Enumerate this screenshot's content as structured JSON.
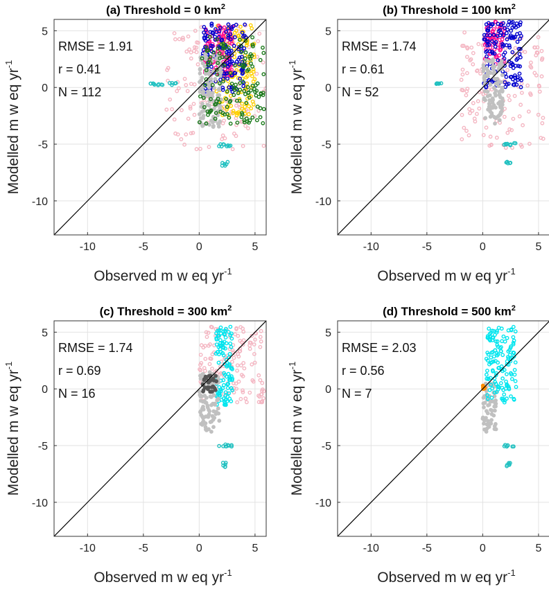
{
  "figure": {
    "common": {
      "x_label": "Observed  m w eq yr",
      "y_label": "Modelled m w eq yr",
      "unit_superscript": "-1",
      "km_superscript": "2"
    }
  },
  "chart_data": [
    {
      "type": "scatter",
      "panel": "(a)",
      "title": "Threshold = 0 km",
      "stats": {
        "rmse": "RMSE = 1.91",
        "r": "r = 0.41",
        "n": "N = 112"
      },
      "xlim": [
        -13,
        6
      ],
      "ylim": [
        -13,
        6
      ],
      "x_ticks": [
        -10,
        -5,
        0,
        5
      ],
      "y_ticks": [
        -10,
        -5,
        0,
        5
      ],
      "grid": true,
      "reference_line": "1:1",
      "clusters": [
        {
          "color": "#f4b6c2",
          "fill": false,
          "x_range": [
            -3,
            6
          ],
          "y_range": [
            -5.5,
            5.5
          ]
        },
        {
          "color": "#ffd000",
          "fill": false,
          "x_range": [
            1.5,
            5
          ],
          "y_range": [
            -2.5,
            5.5
          ]
        },
        {
          "color": "#ff1493",
          "fill": false,
          "x_range": [
            0.5,
            3
          ],
          "y_range": [
            1,
            5.5
          ]
        },
        {
          "color": "#0000cd",
          "fill": false,
          "x_range": [
            0.3,
            4.2
          ],
          "y_range": [
            -0.5,
            5.8
          ]
        },
        {
          "color": "#c0c0c0",
          "fill": true,
          "x_range": [
            0,
            2
          ],
          "y_range": [
            -3.5,
            3
          ]
        },
        {
          "color": "#1a7a1a",
          "fill": false,
          "x_range": [
            0,
            5.8
          ],
          "y_range": [
            -3.2,
            4.5
          ]
        },
        {
          "color": "#20c0c0",
          "fill": false,
          "x_range": [
            -4.5,
            -2
          ],
          "y_range": [
            0.2,
            0.4
          ]
        },
        {
          "color": "#20c0c0",
          "fill": false,
          "x_range": [
            1.5,
            3
          ],
          "y_range": [
            -5.2,
            -5
          ]
        },
        {
          "color": "#20c0c0",
          "fill": false,
          "x_range": [
            2,
            2.6
          ],
          "y_range": [
            -6.9,
            -6.5
          ]
        }
      ]
    },
    {
      "type": "scatter",
      "panel": "(b)",
      "title": "Threshold = 100 km",
      "stats": {
        "rmse": "RMSE = 1.74",
        "r": "r = 0.61",
        "n": "N = 52"
      },
      "xlim": [
        -13,
        6
      ],
      "ylim": [
        -13,
        6
      ],
      "x_ticks": [
        -10,
        -5,
        0,
        5
      ],
      "y_ticks": [
        -10,
        -5,
        0,
        5
      ],
      "grid": true,
      "reference_line": "1:1",
      "clusters": [
        {
          "color": "#f4b6c2",
          "fill": false,
          "x_range": [
            -2,
            5.5
          ],
          "y_range": [
            -5.5,
            5
          ]
        },
        {
          "color": "#ff1493",
          "fill": false,
          "x_range": [
            0.2,
            2
          ],
          "y_range": [
            2,
            5.8
          ]
        },
        {
          "color": "#0000cd",
          "fill": false,
          "x_range": [
            0.1,
            3.5
          ],
          "y_range": [
            0,
            5.8
          ]
        },
        {
          "color": "#c0c0c0",
          "fill": true,
          "x_range": [
            0,
            1.8
          ],
          "y_range": [
            -3.2,
            2.5
          ]
        },
        {
          "color": "#20c0c0",
          "fill": false,
          "x_range": [
            -4.2,
            -3.5
          ],
          "y_range": [
            0.3,
            0.4
          ]
        },
        {
          "color": "#20c0c0",
          "fill": false,
          "x_range": [
            1.5,
            3
          ],
          "y_range": [
            -5.1,
            -4.9
          ]
        },
        {
          "color": "#20c0c0",
          "fill": false,
          "x_range": [
            2.1,
            2.5
          ],
          "y_range": [
            -6.9,
            -6.5
          ]
        }
      ]
    },
    {
      "type": "scatter",
      "panel": "(c)",
      "title": "Threshold = 300 km",
      "stats": {
        "rmse": "RMSE = 1.74",
        "r": "r = 0.69",
        "n": "N = 16"
      },
      "xlim": [
        -13,
        6
      ],
      "ylim": [
        -13,
        6
      ],
      "x_ticks": [
        -10,
        -5,
        0,
        5
      ],
      "y_ticks": [
        -10,
        -5,
        0,
        5
      ],
      "grid": true,
      "reference_line": "1:1",
      "clusters": [
        {
          "color": "#f4b6c2",
          "fill": false,
          "x_range": [
            0,
            5.8
          ],
          "y_range": [
            -1.2,
            5.5
          ]
        },
        {
          "color": "#00e5ee",
          "fill": false,
          "x_range": [
            1.5,
            3
          ],
          "y_range": [
            -1.5,
            5.5
          ]
        },
        {
          "color": "#c0c0c0",
          "fill": true,
          "x_range": [
            0,
            1.8
          ],
          "y_range": [
            -3.8,
            1.5
          ]
        },
        {
          "color": "#555555",
          "fill": true,
          "x_range": [
            0.2,
            1.6
          ],
          "y_range": [
            -0.3,
            1.2
          ]
        },
        {
          "color": "#20c0c0",
          "fill": false,
          "x_range": [
            1.5,
            3
          ],
          "y_range": [
            -5.1,
            -4.9
          ]
        },
        {
          "color": "#20c0c0",
          "fill": false,
          "x_range": [
            2.1,
            2.5
          ],
          "y_range": [
            -6.9,
            -6.5
          ]
        }
      ]
    },
    {
      "type": "scatter",
      "panel": "(d)",
      "title": "Threshold = 500 km",
      "stats": {
        "rmse": "RMSE = 2.03",
        "r": "r = 0.56",
        "n": "N = 7"
      },
      "xlim": [
        -13,
        6
      ],
      "ylim": [
        -13,
        6
      ],
      "x_ticks": [
        -10,
        -5,
        0,
        5
      ],
      "y_ticks": [
        -10,
        -5,
        0,
        5
      ],
      "grid": true,
      "reference_line": "1:1",
      "clusters": [
        {
          "color": "#c0c0c0",
          "fill": true,
          "x_range": [
            0,
            1.2
          ],
          "y_range": [
            -3.8,
            0.5
          ]
        },
        {
          "color": "#00e5ee",
          "fill": false,
          "x_range": [
            0.3,
            3
          ],
          "y_range": [
            -1.2,
            5.5
          ]
        },
        {
          "color": "#ff8c00",
          "fill": true,
          "x_range": [
            0,
            0.4
          ],
          "y_range": [
            -0.1,
            0.4
          ]
        },
        {
          "color": "#20c0c0",
          "fill": false,
          "x_range": [
            1.5,
            2.8
          ],
          "y_range": [
            -5.1,
            -4.9
          ]
        },
        {
          "color": "#20c0c0",
          "fill": false,
          "x_range": [
            2.1,
            2.5
          ],
          "y_range": [
            -6.9,
            -6.5
          ]
        }
      ]
    }
  ]
}
